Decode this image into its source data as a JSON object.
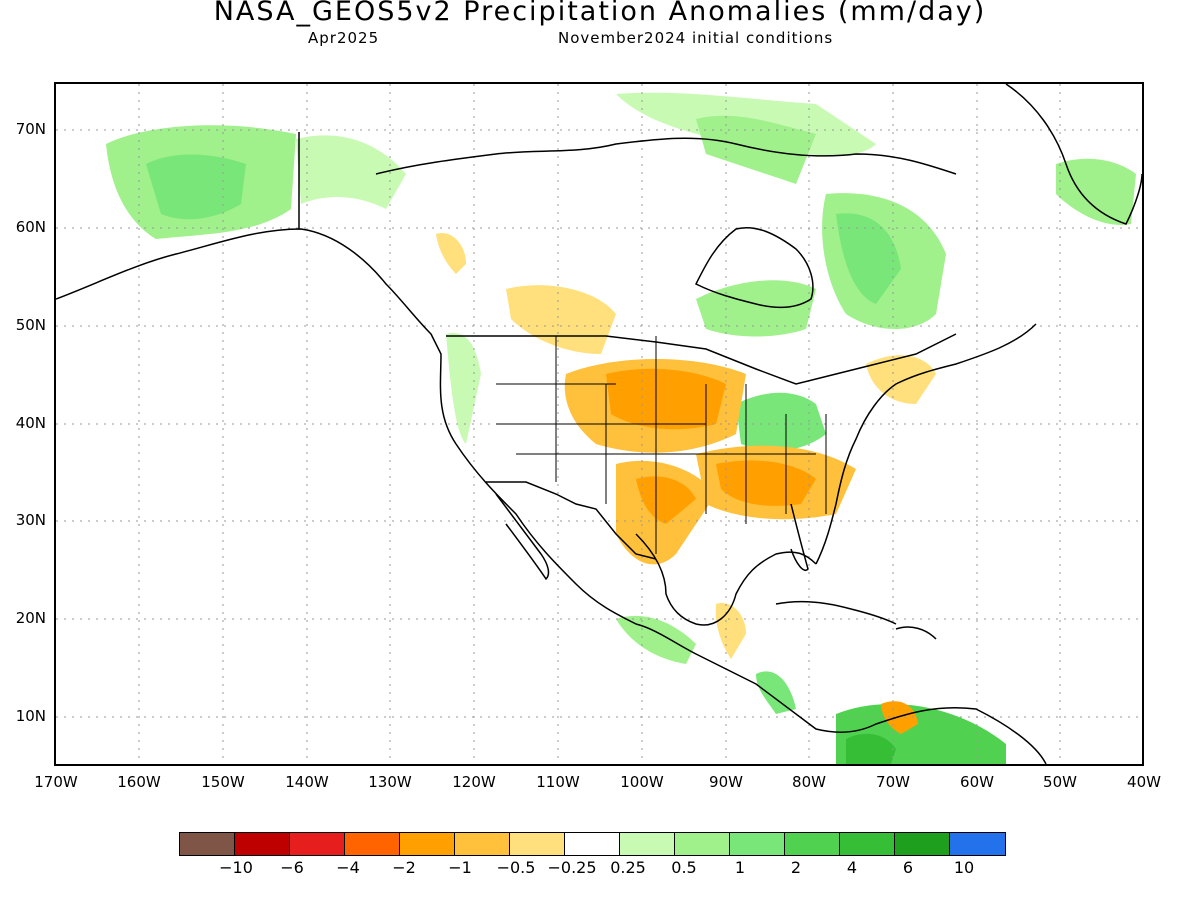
{
  "header": {
    "title": "NASA_GEOS5v2 Precipitation Anomalies (mm/day)",
    "valid_month": "Apr2025",
    "init_conditions": "November2024 initial conditions"
  },
  "map": {
    "region": "North America",
    "lat_labels": [
      "70N",
      "60N",
      "50N",
      "40N",
      "30N",
      "20N",
      "10N"
    ],
    "lon_labels": [
      "170W",
      "160W",
      "150W",
      "140W",
      "130W",
      "120W",
      "110W",
      "100W",
      "90W",
      "80W",
      "70W",
      "60W",
      "50W",
      "40W"
    ],
    "anomaly_regions": [
      {
        "area": "Alaska / Yukon",
        "category": "0.25 to 1"
      },
      {
        "area": "Northern Canada / Arctic islands",
        "category": "0.25 to 1"
      },
      {
        "area": "Quebec / Labrador",
        "category": "0.25 to 1"
      },
      {
        "area": "Ontario",
        "category": "0.5 to 1"
      },
      {
        "area": "Greenland west coast",
        "category": "0.25 to 1"
      },
      {
        "area": "Canadian Prairies",
        "category": "-1 to -0.25"
      },
      {
        "area": "Central Plains / Midwest",
        "category": "-2 to -0.5"
      },
      {
        "area": "Southern Plains / Texas",
        "category": "-2 to -0.5"
      },
      {
        "area": "Southeast US",
        "category": "-2 to -0.5"
      },
      {
        "area": "Ohio Valley",
        "category": "0.5 to 2"
      },
      {
        "area": "Pacific Northwest",
        "category": "0.25 to 0.5"
      },
      {
        "area": "Central America",
        "category": "0.25 to 2"
      },
      {
        "area": "Northern South America",
        "category": "0.5 to 6"
      },
      {
        "area": "Yucatan",
        "category": "-0.5 to -0.25"
      },
      {
        "area": "Venezuela coast",
        "category": "-2 to -0.5"
      }
    ]
  },
  "colorbar": {
    "colors": [
      "#7e5546",
      "#be0000",
      "#e61e1e",
      "#ff6400",
      "#ffa000",
      "#ffc03c",
      "#ffe07c",
      "#ffffff",
      "#c8fab4",
      "#a0f08c",
      "#78e678",
      "#50d250",
      "#37be37",
      "#1ea01e",
      "#2372eb"
    ],
    "labels": [
      "−10",
      "−6",
      "−4",
      "−2",
      "−1",
      "−0.5",
      "−0.25",
      "0.25",
      "0.5",
      "1",
      "2",
      "4",
      "6",
      "10"
    ]
  }
}
